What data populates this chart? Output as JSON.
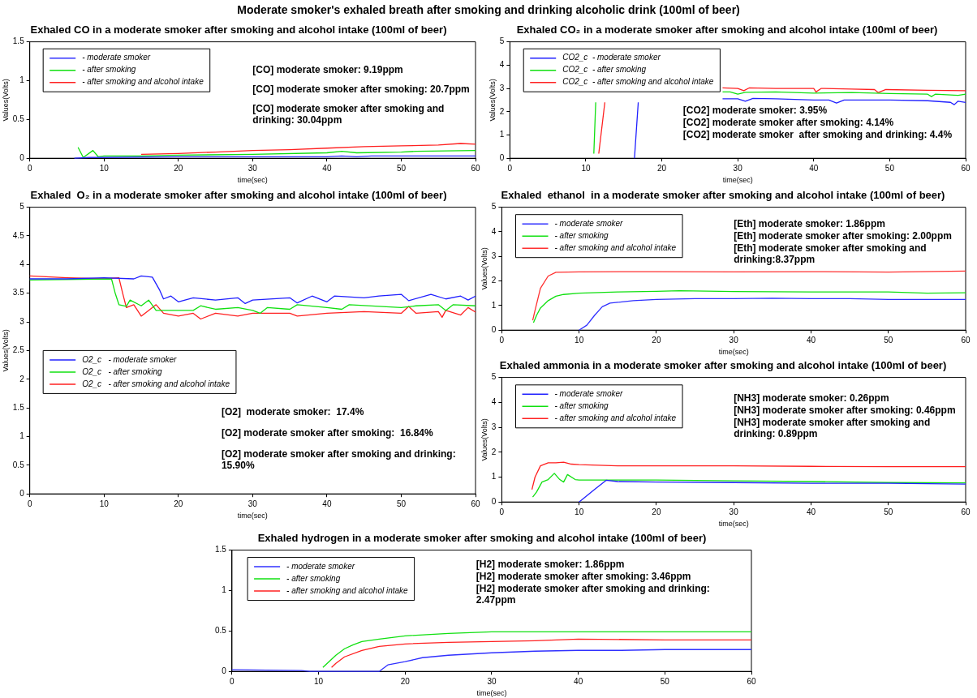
{
  "chart_data": [
    {
      "type": "other",
      "title": "Moderate smoker's exhaled breath after smoking and drinking alcoholic drink (100ml of beer)"
    },
    {
      "type": "line",
      "title": "Exhaled CO in a moderate smoker after smoking and alcohol intake (100ml of beer)",
      "xlabel": "time(sec)",
      "ylabel": "Values(Volts)",
      "xlim": [
        0,
        60
      ],
      "ylim": [
        0,
        1.5
      ],
      "xticks": [
        0,
        10,
        20,
        30,
        40,
        50,
        60
      ],
      "yticks": [
        0,
        0.5,
        1,
        1.5
      ],
      "grid": false,
      "legend": "top left",
      "line_style": "solid",
      "marker": "none",
      "annotations": [
        "[CO] moderate smoker: 9.19ppm",
        "[CO] moderate smoker after smoking: 20.7ppm",
        "[CO] moderate smoker after smoking and drinking: 30.04ppm"
      ],
      "series": [
        {
          "name": "- moderate smoker",
          "color": "#3030ff",
          "x": [
            6,
            8,
            10,
            20,
            30,
            40,
            42,
            44,
            46,
            50,
            60
          ],
          "values": [
            0,
            0.01,
            0.01,
            0.02,
            0.02,
            0.02,
            0.03,
            0.02,
            0.03,
            0.03,
            0.03
          ]
        },
        {
          "name": "- after smoking",
          "color": "#10e010",
          "x": [
            6.5,
            7.2,
            8.5,
            9.2,
            10,
            15,
            20,
            30,
            40,
            42,
            44,
            50,
            52,
            60
          ],
          "values": [
            0.14,
            0.01,
            0.1,
            0.02,
            0.03,
            0.03,
            0.04,
            0.05,
            0.07,
            0.09,
            0.07,
            0.08,
            0.09,
            0.1
          ]
        },
        {
          "name": "- after smoking and alcohol intake",
          "color": "#ff2020",
          "x": [
            15,
            20,
            25,
            30,
            35,
            40,
            45,
            50,
            55,
            58,
            60
          ],
          "values": [
            0.05,
            0.06,
            0.08,
            0.1,
            0.11,
            0.13,
            0.15,
            0.16,
            0.17,
            0.19,
            0.18
          ]
        }
      ]
    },
    {
      "type": "line",
      "title": "Exhaled CO₂ in a moderate smoker after smoking and alcohol intake (100ml of beer)",
      "xlabel": "time(sec)",
      "ylabel": "Values(Volts)",
      "xlim": [
        0,
        60
      ],
      "ylim": [
        0,
        5
      ],
      "xticks": [
        0,
        10,
        20,
        30,
        40,
        50,
        60
      ],
      "yticks": [
        0,
        1,
        2,
        3,
        4,
        5
      ],
      "grid": false,
      "legend": "top left",
      "line_style": "solid",
      "marker": "none",
      "annotations": [
        "[CO2] moderate smoker: 3.95%",
        "[CO2] moderate smoker after smoking: 4.14%",
        "[CO2] moderate smoker  after smoking and drinking: 4.4%"
      ],
      "series": [
        {
          "name": "CO2_c  - moderate smoker",
          "color": "#2020ff",
          "x": [
            16.4,
            16.9,
            17.2,
            28,
            30,
            31,
            32,
            35,
            40,
            42,
            43,
            44,
            50,
            55,
            58,
            58.5,
            59,
            60
          ],
          "values": [
            0,
            2.4,
            null,
            2.55,
            2.55,
            2.45,
            2.57,
            2.55,
            2.5,
            2.5,
            2.37,
            2.5,
            2.5,
            2.47,
            2.4,
            2.3,
            2.45,
            2.4
          ]
        },
        {
          "name": "CO2_c  - after smoking",
          "color": "#10e010",
          "x": [
            11.05,
            11.3,
            11.5,
            28,
            29,
            30,
            31,
            35,
            40,
            45,
            50,
            55,
            55.5,
            56,
            59,
            60
          ],
          "values": [
            0.2,
            2.4,
            null,
            2.85,
            2.85,
            2.75,
            2.83,
            2.85,
            2.8,
            2.82,
            2.78,
            2.75,
            2.65,
            2.75,
            2.7,
            2.75
          ]
        },
        {
          "name": "CO2_c  - after smoking and alcohol intake",
          "color": "#ff2020",
          "x": [
            11.7,
            12.5,
            12.7,
            28,
            30,
            30.8,
            31.5,
            35,
            40,
            40.3,
            41,
            45,
            48,
            48.5,
            49.5,
            55,
            60
          ],
          "values": [
            0.2,
            2.4,
            null,
            3.02,
            3,
            2.9,
            3.02,
            3,
            3,
            2.85,
            3,
            2.97,
            2.95,
            2.82,
            2.95,
            2.92,
            2.9
          ]
        }
      ]
    },
    {
      "type": "line",
      "title": "Exhaled  O₂ in a moderate smoker after smoking and alcohol intake (100ml of beer)",
      "xlabel": "time(sec)",
      "ylabel": "Values(Volts)",
      "xlim": [
        0,
        60
      ],
      "ylim": [
        0,
        5
      ],
      "xticks": [
        0,
        10,
        20,
        30,
        40,
        50,
        60
      ],
      "yticks": [
        0,
        0.5,
        1,
        1.5,
        2,
        2.5,
        3,
        3.5,
        4,
        4.5,
        5
      ],
      "grid": false,
      "legend": "left",
      "line_style": "solid",
      "marker": "none",
      "annotations": [
        "[O2]  moderate smoker:  17.4%",
        "[O2] moderate smoker after smoking:  16.84%",
        "[O2] moderate smoker after smoking and drinking: 15.90%"
      ],
      "series": [
        {
          "name": "O2_c   - moderate smoker",
          "color": "#2020ff",
          "x": [
            0,
            5,
            10,
            14,
            15,
            16.5,
            17.5,
            18,
            19,
            20,
            22,
            25,
            28,
            29,
            30,
            35,
            36,
            38,
            40,
            41,
            45,
            47,
            50,
            51,
            54,
            56,
            58,
            59,
            60
          ],
          "values": [
            3.75,
            3.75,
            3.77,
            3.75,
            3.8,
            3.78,
            3.55,
            3.4,
            3.45,
            3.35,
            3.42,
            3.38,
            3.42,
            3.32,
            3.38,
            3.42,
            3.33,
            3.45,
            3.35,
            3.45,
            3.42,
            3.45,
            3.48,
            3.37,
            3.48,
            3.4,
            3.45,
            3.38,
            3.45
          ]
        },
        {
          "name": "O2_c   - after smoking",
          "color": "#10e010",
          "x": [
            0,
            11,
            11.5,
            12,
            13,
            13.5,
            15,
            16,
            17,
            20,
            22,
            23,
            25,
            28,
            30,
            31,
            32,
            35,
            36,
            40,
            42,
            43,
            50,
            52,
            55,
            56,
            57,
            60
          ],
          "values": [
            3.73,
            3.75,
            3.5,
            3.3,
            3.27,
            3.38,
            3.28,
            3.38,
            3.2,
            3.2,
            3.2,
            3.28,
            3.22,
            3.25,
            3.2,
            3.15,
            3.25,
            3.22,
            3.3,
            3.25,
            3.22,
            3.3,
            3.25,
            3.28,
            3.3,
            3.2,
            3.3,
            3.28
          ]
        },
        {
          "name": "O2_c   - after smoking and alcohol intake",
          "color": "#ff2020",
          "x": [
            0,
            5,
            10,
            12,
            12.5,
            13,
            14,
            15,
            16,
            17,
            18,
            20,
            22,
            23,
            25,
            28,
            30,
            35,
            36,
            40,
            45,
            50,
            51,
            52,
            55,
            55.5,
            56,
            58,
            59,
            60
          ],
          "values": [
            3.8,
            3.77,
            3.75,
            3.77,
            3.5,
            3.25,
            3.3,
            3.1,
            3.2,
            3.3,
            3.15,
            3.1,
            3.15,
            3.05,
            3.15,
            3.1,
            3.15,
            3.15,
            3.1,
            3.15,
            3.18,
            3.15,
            3.27,
            3.15,
            3.18,
            3.08,
            3.2,
            3.12,
            3.25,
            3.17
          ]
        }
      ]
    },
    {
      "type": "line",
      "title": "Exhaled  ethanol  in a moderate smoker after smoking and alcohol intake (100ml of beer)",
      "xlabel": "time(sec)",
      "ylabel": "Values(Volts)",
      "xlim": [
        0,
        60
      ],
      "ylim": [
        0,
        5
      ],
      "xticks": [
        0,
        10,
        20,
        30,
        40,
        50,
        60
      ],
      "yticks": [
        0,
        1,
        2,
        3,
        4,
        5
      ],
      "grid": false,
      "legend": "top left",
      "line_style": "solid",
      "marker": "none",
      "annotations": [
        "[Eth] moderate smoker: 1.86ppm",
        "[Eth] moderate smoker after smoking: 2.00ppm",
        "[Eth] moderate smoker after smoking and drinking:8.37ppm"
      ],
      "series": [
        {
          "name": "- moderate smoker",
          "color": "#3030ff",
          "x": [
            10,
            11,
            12,
            13,
            14,
            15,
            17,
            20,
            25,
            30,
            35,
            40,
            45,
            50,
            55,
            60
          ],
          "values": [
            0,
            0.2,
            0.6,
            0.95,
            1.1,
            1.13,
            1.2,
            1.25,
            1.28,
            1.28,
            1.3,
            1.28,
            1.28,
            1.25,
            1.25,
            1.25
          ]
        },
        {
          "name": "- after smoking",
          "color": "#10e010",
          "x": [
            4.1,
            4.5,
            5,
            6,
            7,
            8,
            10,
            15,
            20,
            23,
            30,
            40,
            50,
            55,
            60
          ],
          "values": [
            0.3,
            0.6,
            0.9,
            1.2,
            1.38,
            1.45,
            1.5,
            1.55,
            1.58,
            1.6,
            1.57,
            1.55,
            1.55,
            1.5,
            1.52
          ]
        },
        {
          "name": "- after smoking and alcohol intake",
          "color": "#ff3030",
          "x": [
            4,
            4.3,
            5,
            6,
            7,
            10,
            20,
            30,
            40,
            50,
            60
          ],
          "values": [
            0.4,
            0.8,
            1.7,
            2.2,
            2.35,
            2.37,
            2.38,
            2.37,
            2.38,
            2.36,
            2.4
          ]
        }
      ]
    },
    {
      "type": "line",
      "title": "Exhaled ammonia in a moderate smoker after smoking and alcohol intake (100ml of beer)",
      "xlabel": "time(sec)",
      "ylabel": "Values(Volts)",
      "xlim": [
        0,
        60
      ],
      "ylim": [
        0,
        5
      ],
      "xticks": [
        0,
        10,
        20,
        30,
        40,
        50,
        60
      ],
      "yticks": [
        0,
        1,
        2,
        3,
        4,
        5
      ],
      "grid": false,
      "legend": "top left",
      "line_style": "solid",
      "marker": "none",
      "annotations": [
        "[NH3] moderate smoker: 0.26ppm",
        "[NH3] moderate smoker after smoking: 0.46ppm",
        "[NH3] moderate smoker after smoking and drinking: 0.89ppm"
      ],
      "series": [
        {
          "name": "- moderate smoker",
          "color": "#2020ff",
          "x": [
            10,
            11,
            12,
            13,
            13.5,
            15,
            20,
            30,
            40,
            50,
            60
          ],
          "values": [
            0,
            0.25,
            0.5,
            0.75,
            0.87,
            0.82,
            0.8,
            0.78,
            0.75,
            0.75,
            0.72
          ]
        },
        {
          "name": "- after smoking",
          "color": "#10e010",
          "x": [
            4,
            4.5,
            5.2,
            6,
            6.8,
            7.5,
            8,
            8.5,
            9.5,
            10,
            20,
            30,
            40,
            50,
            60
          ],
          "values": [
            0.2,
            0.4,
            0.8,
            0.9,
            1.15,
            0.9,
            0.8,
            1.1,
            0.9,
            0.88,
            0.88,
            0.85,
            0.82,
            0.78,
            0.77
          ]
        },
        {
          "name": "- after smoking and alcohol intake",
          "color": "#ff2020",
          "x": [
            3.9,
            4.3,
            5,
            6,
            7,
            8,
            9,
            10,
            15,
            20,
            30,
            40,
            50,
            60
          ],
          "values": [
            0.5,
            1,
            1.45,
            1.57,
            1.57,
            1.6,
            1.52,
            1.5,
            1.45,
            1.45,
            1.45,
            1.43,
            1.42,
            1.42
          ]
        }
      ]
    },
    {
      "type": "line",
      "title": "Exhaled hydrogen in a moderate smoker after smoking and alcohol intake (100ml of beer)",
      "xlabel": "time(sec)",
      "xlim": [
        0,
        60
      ],
      "ylim": [
        0,
        1.5
      ],
      "xticks": [
        0,
        10,
        20,
        30,
        40,
        50,
        60
      ],
      "yticks": [
        0,
        0.5,
        1,
        1.5
      ],
      "grid": false,
      "legend": "top left",
      "line_style": "solid",
      "marker": "none",
      "annotations": [
        "[H2] moderate smoker: 1.86ppm",
        "[H2] moderate smoker after smoking: 3.46ppm",
        "[H2] moderate smoker after smoking and drinking: 2.47ppm"
      ],
      "series": [
        {
          "name": "- moderate smoker",
          "color": "#3030ff",
          "x": [
            0,
            8,
            9,
            17,
            18,
            20,
            22,
            25,
            30,
            35,
            40,
            45,
            50,
            55,
            60
          ],
          "values": [
            0.02,
            0.01,
            0,
            0,
            0.08,
            0.12,
            0.17,
            0.2,
            0.23,
            0.25,
            0.26,
            0.26,
            0.27,
            0.27,
            0.27
          ]
        },
        {
          "name": "- after smoking",
          "color": "#10e010",
          "x": [
            10.5,
            11,
            12,
            13,
            14,
            15,
            17,
            20,
            25,
            30,
            40,
            50,
            60
          ],
          "values": [
            0.05,
            0.1,
            0.2,
            0.28,
            0.33,
            0.37,
            0.4,
            0.44,
            0.47,
            0.49,
            0.49,
            0.49,
            0.49
          ]
        },
        {
          "name": "- after smoking and alcohol intake",
          "color": "#ff2020",
          "x": [
            11.5,
            12,
            13,
            15,
            17,
            20,
            25,
            30,
            35,
            40,
            50,
            60
          ],
          "values": [
            0.05,
            0.1,
            0.18,
            0.26,
            0.31,
            0.34,
            0.36,
            0.37,
            0.38,
            0.4,
            0.39,
            0.39
          ]
        }
      ]
    }
  ]
}
